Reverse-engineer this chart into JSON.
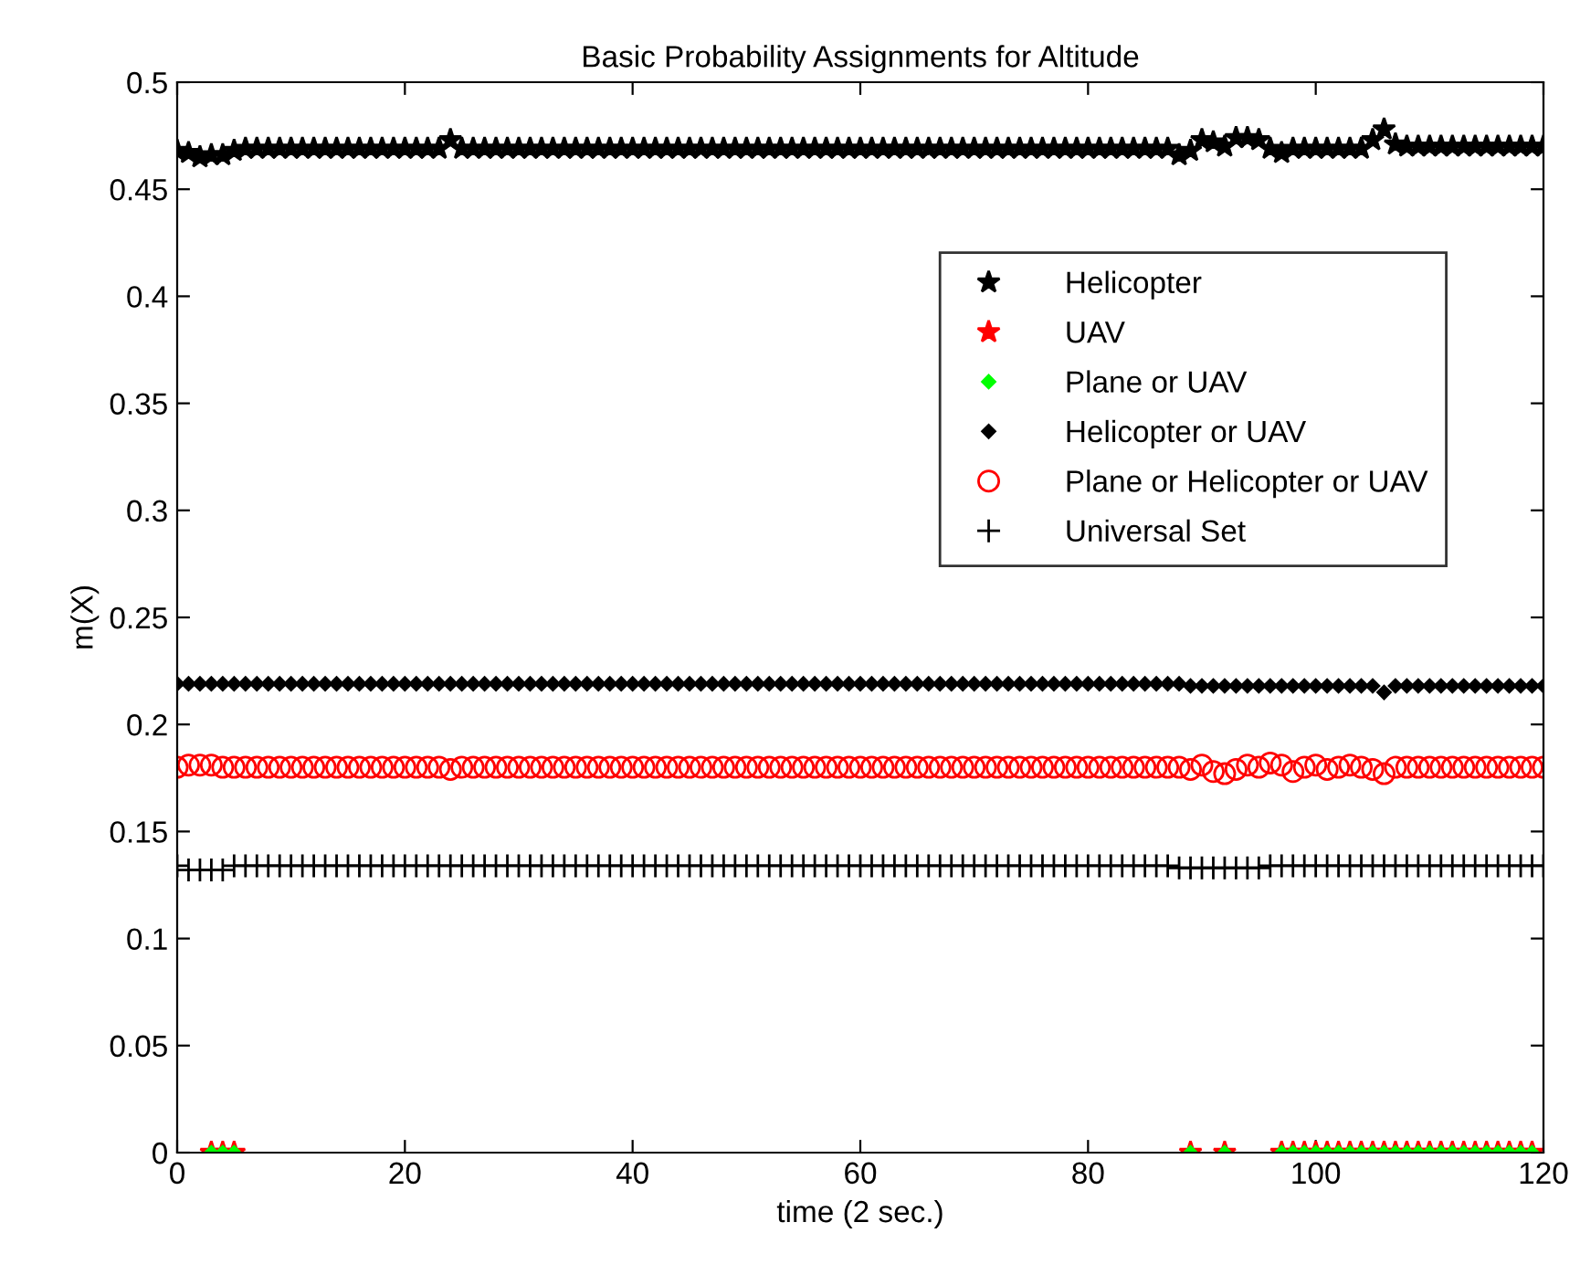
{
  "chart_data": {
    "type": "scatter",
    "title": "Basic Probability Assignments for Altitude",
    "xlabel": "time (2 sec.)",
    "ylabel": "m(X)",
    "xlim": [
      0,
      120
    ],
    "xticks": [
      0,
      20,
      40,
      60,
      80,
      100,
      120
    ],
    "ylim": [
      0,
      0.5
    ],
    "yticks": [
      0,
      0.05,
      0.1,
      0.15,
      0.2,
      0.25,
      0.3,
      0.35,
      0.4,
      0.45,
      0.5
    ],
    "grid": false,
    "legend": "top right",
    "x": [
      0,
      1,
      2,
      3,
      4,
      5,
      6,
      7,
      8,
      9,
      10,
      11,
      12,
      13,
      14,
      15,
      16,
      17,
      18,
      19,
      20,
      21,
      22,
      23,
      24,
      25,
      26,
      27,
      28,
      29,
      30,
      31,
      32,
      33,
      34,
      35,
      36,
      37,
      38,
      39,
      40,
      41,
      42,
      43,
      44,
      45,
      46,
      47,
      48,
      49,
      50,
      51,
      52,
      53,
      54,
      55,
      56,
      57,
      58,
      59,
      60,
      61,
      62,
      63,
      64,
      65,
      66,
      67,
      68,
      69,
      70,
      71,
      72,
      73,
      74,
      75,
      76,
      77,
      78,
      79,
      80,
      81,
      82,
      83,
      84,
      85,
      86,
      87,
      88,
      89,
      90,
      91,
      92,
      93,
      94,
      95,
      96,
      97,
      98,
      99,
      100,
      101,
      102,
      103,
      104,
      105,
      106,
      107,
      108,
      109,
      110,
      111,
      112,
      113,
      114,
      115,
      116,
      117,
      118,
      119,
      120
    ],
    "series": [
      {
        "name": "Helicopter",
        "color": "#000000",
        "marker": "star",
        "values": [
          0.468,
          0.467,
          0.465,
          0.466,
          0.466,
          0.468,
          0.469,
          0.469,
          0.469,
          0.469,
          0.469,
          0.469,
          0.469,
          0.469,
          0.469,
          0.469,
          0.469,
          0.469,
          0.469,
          0.469,
          0.469,
          0.469,
          0.469,
          0.469,
          0.473,
          0.469,
          0.469,
          0.469,
          0.469,
          0.469,
          0.469,
          0.469,
          0.469,
          0.469,
          0.469,
          0.469,
          0.469,
          0.469,
          0.469,
          0.469,
          0.469,
          0.469,
          0.469,
          0.469,
          0.469,
          0.469,
          0.469,
          0.469,
          0.469,
          0.469,
          0.469,
          0.469,
          0.469,
          0.469,
          0.469,
          0.469,
          0.469,
          0.469,
          0.469,
          0.469,
          0.469,
          0.469,
          0.469,
          0.469,
          0.469,
          0.469,
          0.469,
          0.469,
          0.469,
          0.469,
          0.469,
          0.469,
          0.469,
          0.469,
          0.469,
          0.469,
          0.469,
          0.469,
          0.469,
          0.469,
          0.469,
          0.469,
          0.469,
          0.469,
          0.469,
          0.469,
          0.469,
          0.469,
          0.466,
          0.468,
          0.473,
          0.472,
          0.47,
          0.474,
          0.474,
          0.473,
          0.469,
          0.467,
          0.469,
          0.469,
          0.469,
          0.469,
          0.469,
          0.469,
          0.469,
          0.473,
          0.478,
          0.471,
          0.47,
          0.47,
          0.47,
          0.47,
          0.47,
          0.47,
          0.47,
          0.47,
          0.47,
          0.47,
          0.47,
          0.47,
          0.47
        ]
      },
      {
        "name": "UAV",
        "color": "#ff0000",
        "marker": "star",
        "x": [
          3,
          4,
          5,
          89,
          92,
          97,
          98,
          99,
          100,
          101,
          102,
          103,
          104,
          105,
          106,
          107,
          108,
          109,
          110,
          111,
          112,
          113,
          114,
          115,
          116,
          117,
          118,
          119
        ],
        "values": [
          0,
          0,
          0,
          0,
          0,
          0,
          0,
          0,
          0,
          0,
          0,
          0,
          0,
          0,
          0,
          0,
          0,
          0,
          0,
          0,
          0,
          0,
          0,
          0,
          0,
          0,
          0,
          0
        ]
      },
      {
        "name": "Plane or UAV",
        "color": "#00ff00",
        "marker": "diamond",
        "x": [
          3,
          4,
          5,
          89,
          92,
          97,
          98,
          99,
          100,
          101,
          102,
          103,
          104,
          105,
          106,
          107,
          108,
          109,
          110,
          111,
          112,
          113,
          114,
          115,
          116,
          117,
          118,
          119
        ],
        "values": [
          0,
          0,
          0,
          0,
          0,
          0,
          0,
          0,
          0,
          0,
          0,
          0,
          0,
          0,
          0,
          0,
          0,
          0,
          0,
          0,
          0,
          0,
          0,
          0,
          0,
          0,
          0,
          0
        ]
      },
      {
        "name": "Helicopter or UAV",
        "color": "#000000",
        "marker": "diamond",
        "values": [
          0.219,
          0.219,
          0.219,
          0.219,
          0.219,
          0.219,
          0.219,
          0.219,
          0.219,
          0.219,
          0.219,
          0.219,
          0.219,
          0.219,
          0.219,
          0.219,
          0.219,
          0.219,
          0.219,
          0.219,
          0.219,
          0.219,
          0.219,
          0.219,
          0.219,
          0.219,
          0.219,
          0.219,
          0.219,
          0.219,
          0.219,
          0.219,
          0.219,
          0.219,
          0.219,
          0.219,
          0.219,
          0.219,
          0.219,
          0.219,
          0.219,
          0.219,
          0.219,
          0.219,
          0.219,
          0.219,
          0.219,
          0.219,
          0.219,
          0.219,
          0.219,
          0.219,
          0.219,
          0.219,
          0.219,
          0.219,
          0.219,
          0.219,
          0.219,
          0.219,
          0.219,
          0.219,
          0.219,
          0.219,
          0.219,
          0.219,
          0.219,
          0.219,
          0.219,
          0.219,
          0.219,
          0.219,
          0.219,
          0.219,
          0.219,
          0.219,
          0.219,
          0.219,
          0.219,
          0.219,
          0.219,
          0.219,
          0.219,
          0.219,
          0.219,
          0.219,
          0.219,
          0.219,
          0.219,
          0.218,
          0.218,
          0.218,
          0.218,
          0.218,
          0.218,
          0.218,
          0.218,
          0.218,
          0.218,
          0.218,
          0.218,
          0.218,
          0.218,
          0.218,
          0.218,
          0.218,
          0.215,
          0.218,
          0.218,
          0.218,
          0.218,
          0.218,
          0.218,
          0.218,
          0.218,
          0.218,
          0.218,
          0.218,
          0.218,
          0.218,
          0.218
        ]
      },
      {
        "name": "Plane or Helicopter or UAV",
        "color": "#ff0000",
        "marker": "circle",
        "values": [
          0.18,
          0.181,
          0.181,
          0.181,
          0.18,
          0.18,
          0.18,
          0.18,
          0.18,
          0.18,
          0.18,
          0.18,
          0.18,
          0.18,
          0.18,
          0.18,
          0.18,
          0.18,
          0.18,
          0.18,
          0.18,
          0.18,
          0.18,
          0.18,
          0.179,
          0.18,
          0.18,
          0.18,
          0.18,
          0.18,
          0.18,
          0.18,
          0.18,
          0.18,
          0.18,
          0.18,
          0.18,
          0.18,
          0.18,
          0.18,
          0.18,
          0.18,
          0.18,
          0.18,
          0.18,
          0.18,
          0.18,
          0.18,
          0.18,
          0.18,
          0.18,
          0.18,
          0.18,
          0.18,
          0.18,
          0.18,
          0.18,
          0.18,
          0.18,
          0.18,
          0.18,
          0.18,
          0.18,
          0.18,
          0.18,
          0.18,
          0.18,
          0.18,
          0.18,
          0.18,
          0.18,
          0.18,
          0.18,
          0.18,
          0.18,
          0.18,
          0.18,
          0.18,
          0.18,
          0.18,
          0.18,
          0.18,
          0.18,
          0.18,
          0.18,
          0.18,
          0.18,
          0.18,
          0.18,
          0.179,
          0.181,
          0.178,
          0.177,
          0.179,
          0.181,
          0.18,
          0.182,
          0.181,
          0.178,
          0.18,
          0.181,
          0.179,
          0.18,
          0.181,
          0.18,
          0.179,
          0.177,
          0.18,
          0.18,
          0.18,
          0.18,
          0.18,
          0.18,
          0.18,
          0.18,
          0.18,
          0.18,
          0.18,
          0.18,
          0.18,
          0.18
        ]
      },
      {
        "name": "Universal Set",
        "color": "#000000",
        "marker": "cross",
        "values": [
          0.134,
          0.132,
          0.132,
          0.132,
          0.132,
          0.134,
          0.134,
          0.134,
          0.134,
          0.134,
          0.134,
          0.134,
          0.134,
          0.134,
          0.134,
          0.134,
          0.134,
          0.134,
          0.134,
          0.134,
          0.134,
          0.134,
          0.134,
          0.134,
          0.134,
          0.134,
          0.134,
          0.134,
          0.134,
          0.134,
          0.134,
          0.134,
          0.134,
          0.134,
          0.134,
          0.134,
          0.134,
          0.134,
          0.134,
          0.134,
          0.134,
          0.134,
          0.134,
          0.134,
          0.134,
          0.134,
          0.134,
          0.134,
          0.134,
          0.134,
          0.134,
          0.134,
          0.134,
          0.134,
          0.134,
          0.134,
          0.134,
          0.134,
          0.134,
          0.134,
          0.134,
          0.134,
          0.134,
          0.134,
          0.134,
          0.134,
          0.134,
          0.134,
          0.134,
          0.134,
          0.134,
          0.134,
          0.134,
          0.134,
          0.134,
          0.134,
          0.134,
          0.134,
          0.134,
          0.134,
          0.134,
          0.134,
          0.134,
          0.134,
          0.134,
          0.134,
          0.134,
          0.134,
          0.133,
          0.133,
          0.133,
          0.133,
          0.133,
          0.133,
          0.133,
          0.133,
          0.134,
          0.134,
          0.134,
          0.134,
          0.134,
          0.134,
          0.134,
          0.134,
          0.134,
          0.134,
          0.134,
          0.134,
          0.134,
          0.134,
          0.134,
          0.134,
          0.134,
          0.134,
          0.134,
          0.134,
          0.134,
          0.134,
          0.134,
          0.134,
          0.134
        ]
      }
    ]
  }
}
